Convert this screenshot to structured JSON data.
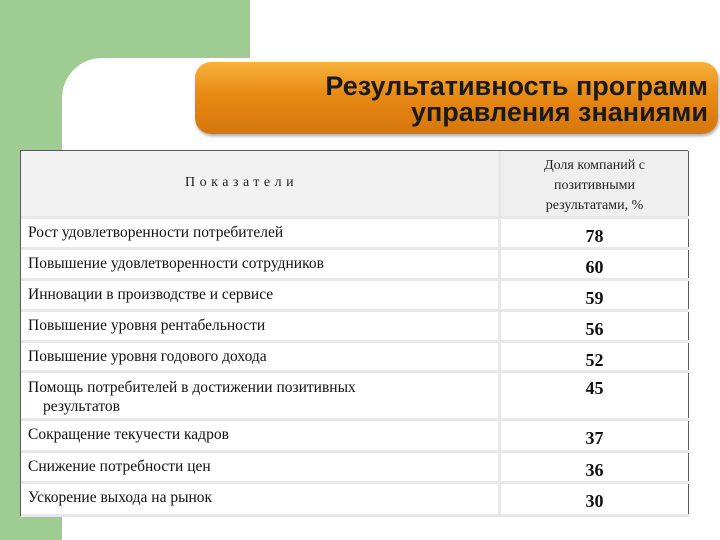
{
  "title": {
    "line1": "Результативность программ",
    "line2": "управления знаниями"
  },
  "table": {
    "header": {
      "indicator": "Показатели",
      "share_line1": "Доля компаний с",
      "share_line2": "позитивными",
      "share_line3": "результатами, %"
    },
    "rows": [
      {
        "name": "Рост удовлетворенности потребителей",
        "value": "78"
      },
      {
        "name": "Повышение удовлетворенности сотрудников",
        "value": "60"
      },
      {
        "name": "Инновации в производстве и сервисе",
        "value": "59"
      },
      {
        "name": "Повышение уровня рентабельности",
        "value": "56"
      },
      {
        "name": "Повышение уровня годового дохода",
        "value": "52"
      },
      {
        "name": "Помощь потребителей в достижении позитивных",
        "name_line2": "результатов",
        "value": "45"
      },
      {
        "name": "Сокращение текучести кадров",
        "value": "37"
      },
      {
        "name": "Снижение потребности цен",
        "value": "36"
      },
      {
        "name": "Ускорение выхода на рынок",
        "value": "30"
      }
    ]
  }
}
